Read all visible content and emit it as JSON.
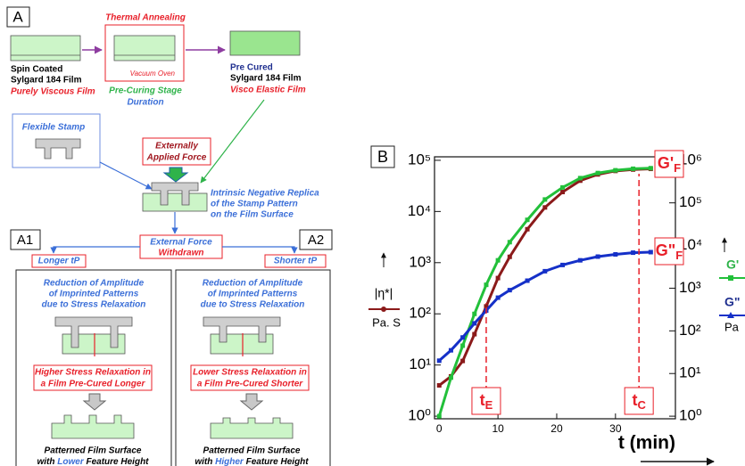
{
  "panel_a": {
    "label": "A",
    "annealing": "Thermal Annealing",
    "oven": "Vacuum Oven",
    "stage": "Pre-Curing Stage",
    "duration": "Duration",
    "step1": {
      "lines": [
        "Spin Coated",
        "Sylgard 184 Film"
      ],
      "note": "Purely Viscous Film"
    },
    "step3": {
      "lines": [
        "Pre Cured",
        "Sylgard 184 Film"
      ],
      "note": "Visco Elastic Film"
    },
    "stamp": "Flexible Stamp",
    "force": [
      "Externally",
      "Applied Force"
    ],
    "replica": [
      "Intrinsic Negative Replica",
      "of the Stamp Pattern",
      "on the Film Surface"
    ],
    "withdrawn": [
      "External Force",
      "Withdrawn"
    ]
  },
  "panel_a1": {
    "label": "A1",
    "condition": "Longer tP",
    "relaxation": [
      "Reduction of Amplitude",
      "of Imprinted Patterns",
      "due to Stress Relaxation"
    ],
    "stress": [
      "Higher Stress Relaxation in",
      "a Film Pre-Cured Longer"
    ],
    "result": [
      "Patterned Film Surface",
      [
        "with",
        "Lower",
        "Feature Height"
      ]
    ]
  },
  "panel_a2": {
    "label": "A2",
    "condition": "Shorter tP",
    "relaxation": [
      "Reduction of Amplitude",
      "of Imprinted Patterns",
      "due to Stress Relaxation"
    ],
    "stress": [
      "Lower Stress Relaxation in",
      "a Film Pre-Cured Shorter"
    ],
    "result": [
      "Patterned Film Surface",
      [
        "with",
        "Higher",
        "Feature Height"
      ]
    ]
  },
  "chart_data": {
    "type": "line",
    "title": "B",
    "xlabel": "t (min)",
    "ylabel": [
      "|η*|",
      "Pa. S"
    ],
    "y2label": [
      "G'",
      "G\"",
      "Pa"
    ],
    "x": [
      0,
      2,
      4,
      6,
      8,
      10,
      12,
      15,
      18,
      21,
      24,
      27,
      30,
      33,
      36
    ],
    "series": [
      {
        "name": "|η*|",
        "color": "#8b1a1a",
        "axis": "y",
        "values": [
          4,
          6,
          12,
          40,
          140,
          500,
          1300,
          4500,
          12000,
          24000,
          40000,
          53000,
          62000,
          66000,
          68000
        ]
      },
      {
        "name": "G'",
        "color": "#22c03a",
        "axis": "y2",
        "values": [
          1,
          8,
          45,
          250,
          1200,
          4500,
          12000,
          40000,
          120000,
          230000,
          380000,
          500000,
          580000,
          630000,
          650000
        ]
      },
      {
        "name": "G\"",
        "color": "#1530c8",
        "axis": "y2",
        "values": [
          20,
          35,
          70,
          150,
          300,
          600,
          900,
          1500,
          2500,
          3500,
          4500,
          5500,
          6200,
          6800,
          7000
        ]
      }
    ],
    "xlim": [
      -0.8,
      40.2
    ],
    "xticks": [
      0,
      10,
      20,
      30
    ],
    "log_y": true,
    "ylim": [
      0.89,
      117000
    ],
    "yticks": [
      {
        "value": 1,
        "label": "10⁰"
      },
      {
        "value": 10,
        "label": "10¹"
      },
      {
        "value": 100,
        "label": "10²"
      },
      {
        "value": 1000,
        "label": "10³"
      },
      {
        "value": 10000,
        "label": "10⁴"
      },
      {
        "value": 100000,
        "label": "10⁵"
      }
    ],
    "y2lim": [
      0.87,
      1200000
    ],
    "y2ticks": [
      {
        "value": 1,
        "label": "10⁰"
      },
      {
        "value": 10,
        "label": "10¹"
      },
      {
        "value": 100,
        "label": "10²"
      },
      {
        "value": 1000,
        "label": "10³"
      },
      {
        "value": 10000,
        "label": "10⁴"
      },
      {
        "value": 100000,
        "label": "10⁵"
      },
      {
        "value": 1000000,
        "label": "10⁶"
      }
    ],
    "grid": false,
    "times": [
      {
        "main": "t",
        "sub": "E",
        "x": 8
      },
      {
        "main": "t",
        "sub": "C",
        "x": 34
      }
    ],
    "plateaus": [
      {
        "main": "G'",
        "sub": "F"
      },
      {
        "main": "G\"",
        "sub": "F"
      }
    ]
  }
}
